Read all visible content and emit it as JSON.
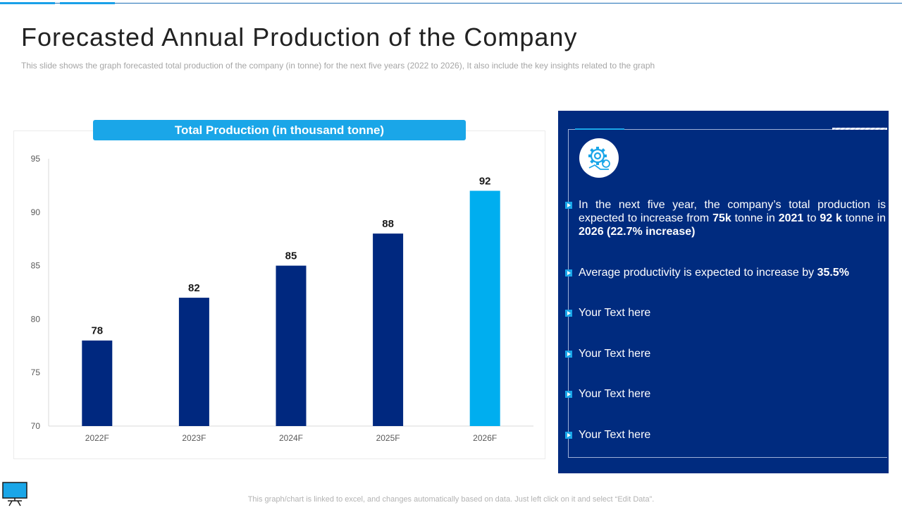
{
  "page": {
    "title": "Forecasted Annual Production of the Company",
    "subtitle": "This slide shows the graph forecasted total production of the company (in tonne) for the next five years (2022 to 2026), It also include the key insights related to the graph",
    "footer": "This graph/chart is linked to excel, and changes automatically based on data. Just left click on it and select “Edit Data”."
  },
  "colors": {
    "accent": "#1aa6e8",
    "dark_blue": "#002b7f",
    "bar_dark": "#00287f",
    "bar_highlight": "#00aeef"
  },
  "chart_data": {
    "type": "bar",
    "title": "Total Production (in thousand tonne)",
    "categories": [
      "2022F",
      "2023F",
      "2024F",
      "2025F",
      "2026F"
    ],
    "values": [
      78,
      82,
      85,
      88,
      92
    ],
    "highlight_index": 4,
    "ylim": [
      70,
      95
    ],
    "yticks": [
      70,
      75,
      80,
      85,
      90,
      95
    ],
    "xlabel": "",
    "ylabel": "",
    "grid": false
  },
  "insights": {
    "bullet1": {
      "p1": "In the next five year, the company’s total production is expected to increase from ",
      "b1": "75k",
      "p2": " tonne in ",
      "b2": "2021",
      "p3": " to ",
      "b3": "92 k",
      "p4": " tonne in ",
      "b4": "2026 (22.7% increase)"
    },
    "bullet2": {
      "p1": "Average productivity  is expected to increase by ",
      "b1": "35.5%"
    },
    "placeholders": [
      "Your Text here",
      "Your Text here",
      "Your Text here",
      "Your Text here"
    ],
    "icon": "gear-cog-icon"
  }
}
